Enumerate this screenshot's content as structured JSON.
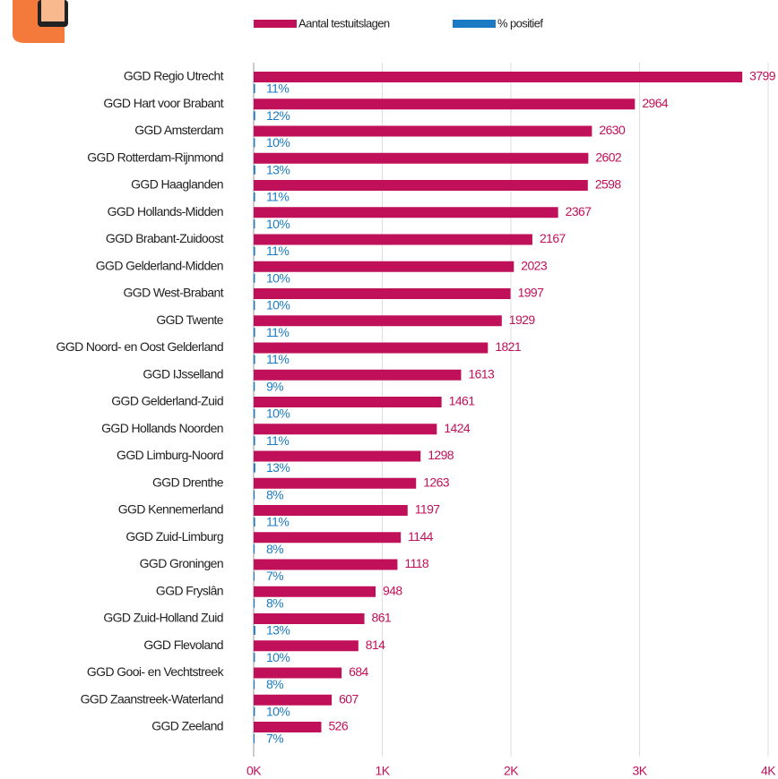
{
  "chart_data": {
    "type": "barh",
    "categories": [
      "GGD Regio Utrecht",
      "GGD Hart voor Brabant",
      "GGD Amsterdam",
      "GGD Rotterdam-Rijnmond",
      "GGD Haaglanden",
      "GGD Hollands-Midden",
      "GGD Brabant-Zuidoost",
      "GGD Gelderland-Midden",
      "GGD West-Brabant",
      "GGD Twente",
      "GGD Noord- en Oost Gelderland",
      "GGD IJsselland",
      "GGD Gelderland-Zuid",
      "GGD Hollands Noorden",
      "GGD Limburg-Noord",
      "GGD Drenthe",
      "GGD Kennemerland",
      "GGD Zuid-Limburg",
      "GGD Groningen",
      "GGD Fryslân",
      "GGD Zuid-Holland Zuid",
      "GGD Flevoland",
      "GGD Gooi- en Vechtstreek",
      "GGD Zaanstreek-Waterland",
      "GGD Zeeland"
    ],
    "series": [
      {
        "name": "Aantal testuitslagen",
        "color": "#c0105a",
        "values": [
          3799,
          2964,
          2630,
          2602,
          2598,
          2367,
          2167,
          2023,
          1997,
          1929,
          1821,
          1613,
          1461,
          1424,
          1298,
          1263,
          1197,
          1144,
          1118,
          948,
          861,
          814,
          684,
          607,
          526
        ]
      },
      {
        "name": "% positief",
        "color": "#1a7bc4",
        "values": [
          11,
          12,
          10,
          13,
          11,
          10,
          11,
          10,
          10,
          11,
          11,
          9,
          10,
          11,
          13,
          8,
          11,
          8,
          7,
          8,
          13,
          10,
          8,
          10,
          7
        ],
        "value_labels": [
          "11%",
          "12%",
          "10%",
          "13%",
          "11%",
          "10%",
          "11%",
          "10%",
          "10%",
          "11%",
          "11%",
          "9%",
          "10%",
          "11%",
          "13%",
          "8%",
          "11%",
          "8%",
          "7%",
          "8%",
          "13%",
          "10%",
          "8%",
          "10%",
          "7%"
        ]
      }
    ],
    "xlim": [
      0,
      4000
    ],
    "xticks": [
      {
        "value": 0,
        "label": "0K"
      },
      {
        "value": 1000,
        "label": "1K"
      },
      {
        "value": 2000,
        "label": "2K"
      },
      {
        "value": 3000,
        "label": "3K"
      },
      {
        "value": 4000,
        "label": "4K"
      }
    ],
    "grid": true
  }
}
